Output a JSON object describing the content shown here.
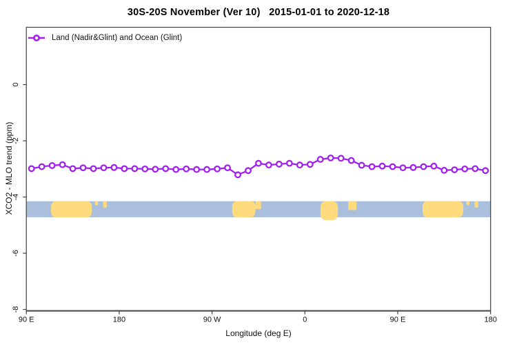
{
  "header": {
    "title": "30S-20S November (Ver 10)   2015-01-01 to 2020-12-18"
  },
  "legend": {
    "label": "Land (Nadir&Glint) and Ocean (Glint)"
  },
  "colors": {
    "line": "#A020F0",
    "marker_fill": "#ffffff",
    "ocean": "#A9BFDB",
    "land": "#FFDB7E",
    "axis": "#3f3f3f",
    "text": "#000000"
  },
  "chart_data": {
    "type": "line",
    "title": "30S-20S November (Ver 10)   2015-01-01 to 2020-12-18",
    "xlabel": "Longitude (deg E)",
    "ylabel": "XCO2 - MLO trend (ppm)",
    "xlim": [
      90,
      540
    ],
    "ylim": [
      -8.05,
      2.04
    ],
    "grid": false,
    "legend_position": "top-left",
    "xticks": {
      "values": [
        90,
        180,
        270,
        360,
        450,
        540
      ],
      "labels": [
        "90 E",
        "180",
        "90 W",
        "0",
        "90 E",
        "180"
      ]
    },
    "yticks": {
      "values": [
        0,
        -2,
        -4,
        -6,
        -8
      ],
      "labels": [
        "0",
        "-2",
        "-4",
        "-6",
        "-8"
      ]
    },
    "series": [
      {
        "name": "Land (Nadir&Glint) and Ocean (Glint)",
        "x": [
          95,
          105,
          115,
          125,
          135,
          145,
          155,
          165,
          175,
          185,
          195,
          205,
          215,
          225,
          235,
          245,
          255,
          265,
          275,
          285,
          295,
          305,
          315,
          325,
          335,
          345,
          355,
          365,
          375,
          385,
          395,
          405,
          415,
          425,
          435,
          445,
          455,
          465,
          475,
          485,
          495,
          505,
          515,
          525,
          535
        ],
        "y": [
          -2.99,
          -2.92,
          -2.88,
          -2.85,
          -2.99,
          -2.96,
          -2.99,
          -2.96,
          -2.95,
          -2.99,
          -2.99,
          -3.0,
          -3.01,
          -2.99,
          -3.02,
          -3.0,
          -3.02,
          -3.02,
          -3.0,
          -2.96,
          -3.21,
          -3.06,
          -2.8,
          -2.86,
          -2.83,
          -2.8,
          -2.86,
          -2.84,
          -2.66,
          -2.61,
          -2.62,
          -2.7,
          -2.87,
          -2.92,
          -2.9,
          -2.92,
          -2.96,
          -2.95,
          -2.92,
          -2.9,
          -3.05,
          -3.03,
          -3.0,
          -2.99,
          -3.06
        ]
      }
    ],
    "map_strip": {
      "ocean_from": 90,
      "ocean_to": 540,
      "value_top": -4.15,
      "value_bottom": -4.72,
      "land_segments": [
        {
          "name": "australia",
          "from": 114,
          "to": 153.5,
          "shape": "full"
        },
        {
          "name": "islands",
          "from": 156.5,
          "to": 159.5,
          "shape": "top",
          "h": 0.25
        },
        {
          "name": "new-caledonia",
          "from": 164.5,
          "to": 168,
          "shape": "top",
          "h": 0.4
        },
        {
          "name": "south-america",
          "from": 289.5,
          "to": 312,
          "shape": "full"
        },
        {
          "name": "brazil-east",
          "from": 312,
          "to": 317.5,
          "shape": "top",
          "h": 0.5
        },
        {
          "name": "africa",
          "from": 375,
          "to": 392,
          "shape": "bulge"
        },
        {
          "name": "madagascar",
          "from": 402,
          "to": 410,
          "shape": "top",
          "h": 0.55
        },
        {
          "name": "australia-2",
          "from": 474,
          "to": 513.5,
          "shape": "full"
        },
        {
          "name": "islands-2",
          "from": 516.5,
          "to": 519.5,
          "shape": "top",
          "h": 0.25
        },
        {
          "name": "new-caledonia-2",
          "from": 524.5,
          "to": 528,
          "shape": "top",
          "h": 0.4
        }
      ]
    }
  }
}
